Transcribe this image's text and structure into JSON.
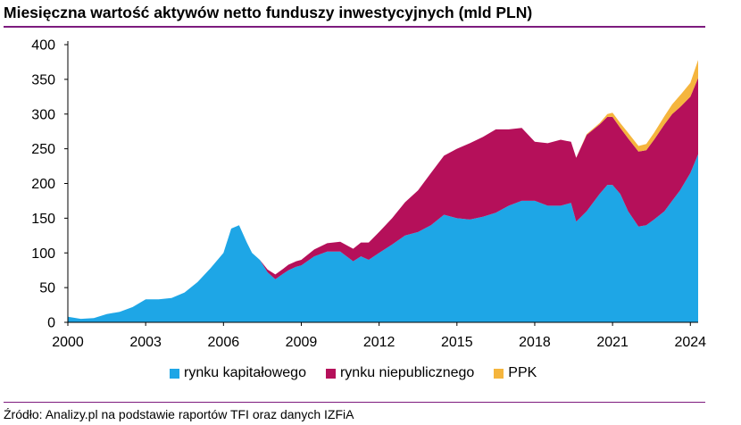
{
  "chart_data": {
    "type": "area",
    "title": "Miesięczna wartość aktywów netto funduszy inwestycyjnych (mld PLN)",
    "stacked": true,
    "xlim": [
      2000,
      2024.3
    ],
    "ylim": [
      0,
      400
    ],
    "y_ticks": [
      0,
      50,
      100,
      150,
      200,
      250,
      300,
      350,
      400
    ],
    "x_ticks": [
      2000,
      2003,
      2006,
      2009,
      2012,
      2015,
      2018,
      2021,
      2024
    ],
    "grid": false,
    "legend_position": "bottom",
    "x": [
      2000.0,
      2000.5,
      2001.0,
      2001.5,
      2002.0,
      2002.5,
      2003.0,
      2003.5,
      2004.0,
      2004.5,
      2005.0,
      2005.5,
      2006.0,
      2006.3,
      2006.6,
      2006.9,
      2007.1,
      2007.4,
      2007.7,
      2008.0,
      2008.3,
      2008.5,
      2008.8,
      2009.0,
      2009.5,
      2010.0,
      2010.5,
      2011.0,
      2011.3,
      2011.6,
      2012.0,
      2012.5,
      2013.0,
      2013.5,
      2014.0,
      2014.5,
      2015.0,
      2015.5,
      2016.0,
      2016.5,
      2017.0,
      2017.5,
      2018.0,
      2018.5,
      2019.0,
      2019.4,
      2019.6,
      2020.0,
      2020.5,
      2020.8,
      2021.0,
      2021.3,
      2021.6,
      2022.0,
      2022.3,
      2022.6,
      2023.0,
      2023.3,
      2023.6,
      2024.0,
      2024.3
    ],
    "series": [
      {
        "name": "rynku kapitałowego",
        "color": "#1ea6e6",
        "values": [
          8,
          5,
          6,
          12,
          15,
          22,
          33,
          33,
          35,
          43,
          58,
          78,
          100,
          135,
          140,
          115,
          100,
          90,
          72,
          62,
          70,
          75,
          80,
          82,
          95,
          102,
          102,
          88,
          95,
          90,
          100,
          112,
          125,
          130,
          140,
          155,
          150,
          148,
          152,
          158,
          168,
          175,
          175,
          168,
          168,
          172,
          145,
          160,
          185,
          198,
          198,
          185,
          160,
          138,
          140,
          148,
          160,
          175,
          190,
          215,
          242
        ]
      },
      {
        "name": "rynku niepublicznego",
        "color": "#b5105a",
        "values": [
          0,
          0,
          0,
          0,
          0,
          0,
          0,
          0,
          0,
          0,
          0,
          0,
          0,
          0,
          0,
          0,
          0,
          0,
          4,
          7,
          7,
          8,
          8,
          8,
          10,
          12,
          14,
          18,
          20,
          25,
          30,
          38,
          48,
          60,
          75,
          85,
          100,
          110,
          115,
          120,
          110,
          105,
          85,
          90,
          95,
          88,
          92,
          110,
          100,
          98,
          98,
          95,
          105,
          108,
          108,
          115,
          125,
          125,
          120,
          110,
          110
        ]
      },
      {
        "name": "PPK",
        "color": "#f5b53d",
        "values": [
          0,
          0,
          0,
          0,
          0,
          0,
          0,
          0,
          0,
          0,
          0,
          0,
          0,
          0,
          0,
          0,
          0,
          0,
          0,
          0,
          0,
          0,
          0,
          0,
          0,
          0,
          0,
          0,
          0,
          0,
          0,
          0,
          0,
          0,
          0,
          0,
          0,
          0,
          0,
          0,
          0,
          0,
          0,
          0,
          0,
          0,
          0,
          1,
          2,
          4,
          6,
          7,
          8,
          8,
          9,
          10,
          12,
          14,
          17,
          20,
          26
        ]
      }
    ]
  },
  "source_text": "Źródło: Analizy.pl na podstawie raportów TFI oraz danych IZFiA"
}
